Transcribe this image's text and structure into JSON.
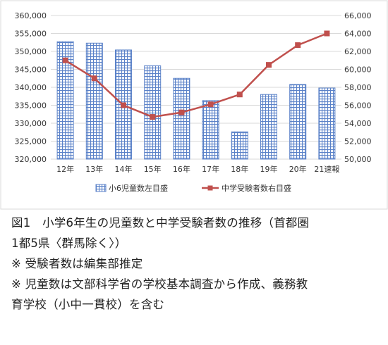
{
  "chart_data": {
    "type": "bar+line",
    "categories": [
      "12年",
      "13年",
      "14年",
      "15年",
      "16年",
      "17年",
      "18年",
      "19年",
      "20年",
      "21速報"
    ],
    "series": [
      {
        "name": "小6児童数左目盛",
        "type": "bar",
        "axis": "left",
        "values": [
          352700,
          352300,
          350400,
          346000,
          342500,
          336300,
          327600,
          338000,
          340800,
          339800
        ],
        "color": "#5b82c8"
      },
      {
        "name": "中学受験者数右目盛",
        "type": "line",
        "axis": "right",
        "values": [
          61000,
          59000,
          56000,
          54700,
          55200,
          56100,
          57200,
          60500,
          62700,
          64000
        ],
        "color": "#c0504d"
      }
    ],
    "y_left": {
      "min": 320000,
      "max": 360000,
      "step": 5000,
      "tick_labels": [
        "320,000",
        "325,000",
        "330,000",
        "335,000",
        "340,000",
        "345,000",
        "350,000",
        "355,000",
        "360,000"
      ]
    },
    "y_right": {
      "min": 50000,
      "max": 66000,
      "step": 2000,
      "tick_labels": [
        "50,000",
        "52,000",
        "54,000",
        "56,000",
        "58,000",
        "60,000",
        "62,000",
        "64,000",
        "66,000"
      ]
    },
    "grid": true,
    "legend": "bottom"
  },
  "caption": {
    "line1": "図1　小学6年生の児童数と中学受験者数の推移（首都圏",
    "line2": "1都5県〈群馬除く〉）",
    "line3": "※ 受験者数は編集部推定",
    "line4": "※ 児童数は文部科学省の学校基本調査から作成、義務教",
    "line5": "育学校（小中一貫校）を含む"
  }
}
